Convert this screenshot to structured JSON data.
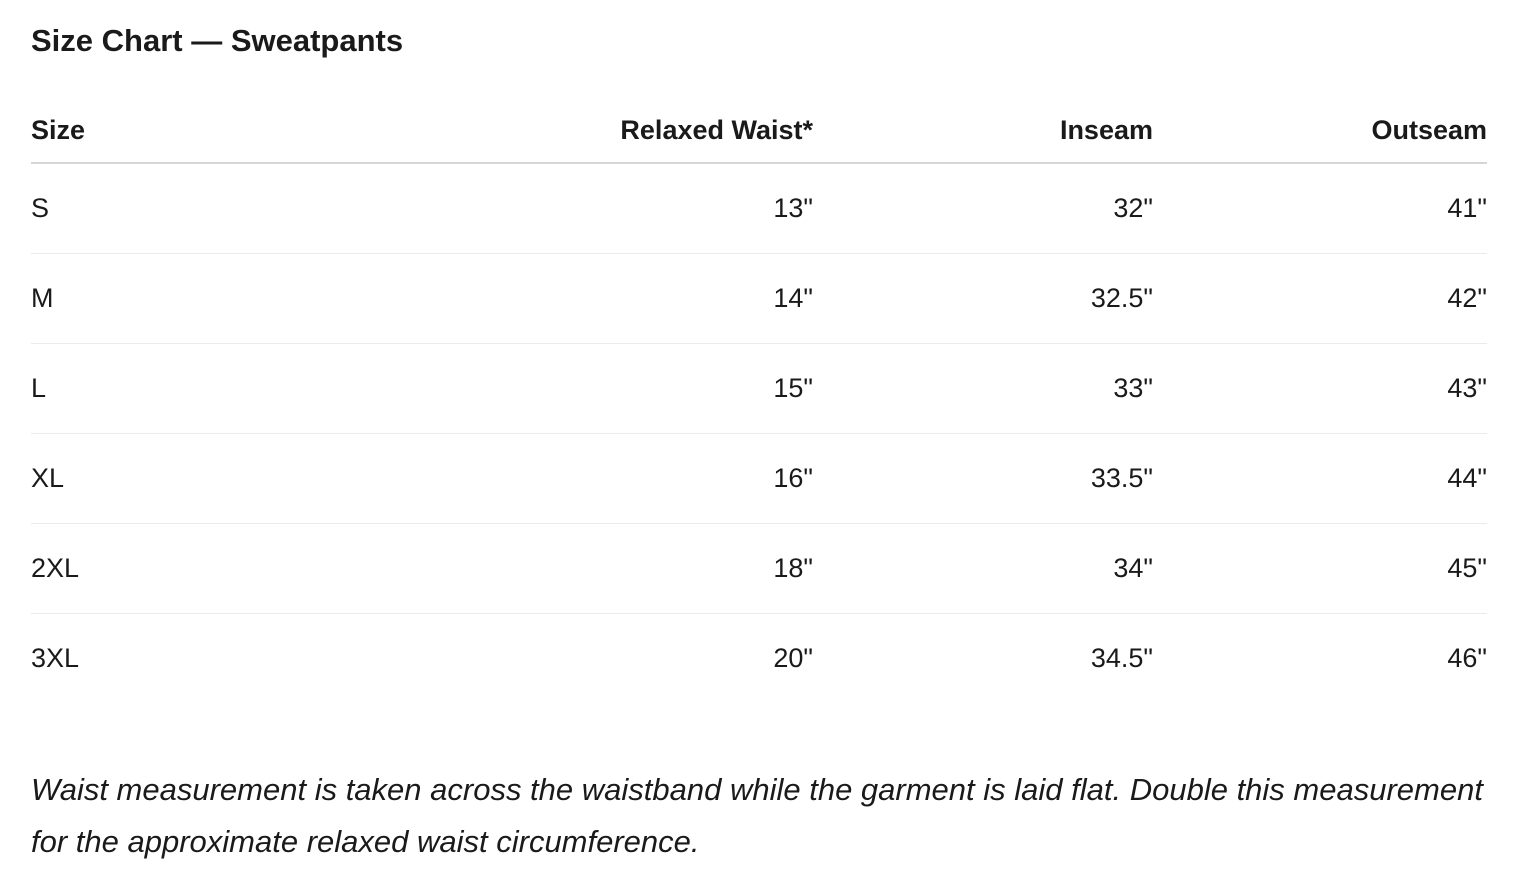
{
  "title": "Size Chart — Sweatpants",
  "table": {
    "headers": [
      "Size",
      "Relaxed Waist*",
      "Inseam",
      "Outseam"
    ],
    "rows": [
      [
        "S",
        "13\"",
        "32\"",
        "41\""
      ],
      [
        "M",
        "14\"",
        "32.5\"",
        "42\""
      ],
      [
        "L",
        "15\"",
        "33\"",
        "43\""
      ],
      [
        "XL",
        "16\"",
        "33.5\"",
        "44\""
      ],
      [
        "2XL",
        "18\"",
        "34\"",
        "45\""
      ],
      [
        "3XL",
        "20\"",
        "34.5\"",
        "46\""
      ]
    ]
  },
  "footnote": "Waist measurement is taken across the waistband while the garment is laid flat. Double this measurement for the approximate relaxed waist circumference.",
  "colors": {
    "text": "#1a1a1a",
    "header_rule": "#d6d6d6",
    "row_rule": "#ebebeb",
    "background": "#ffffff"
  }
}
